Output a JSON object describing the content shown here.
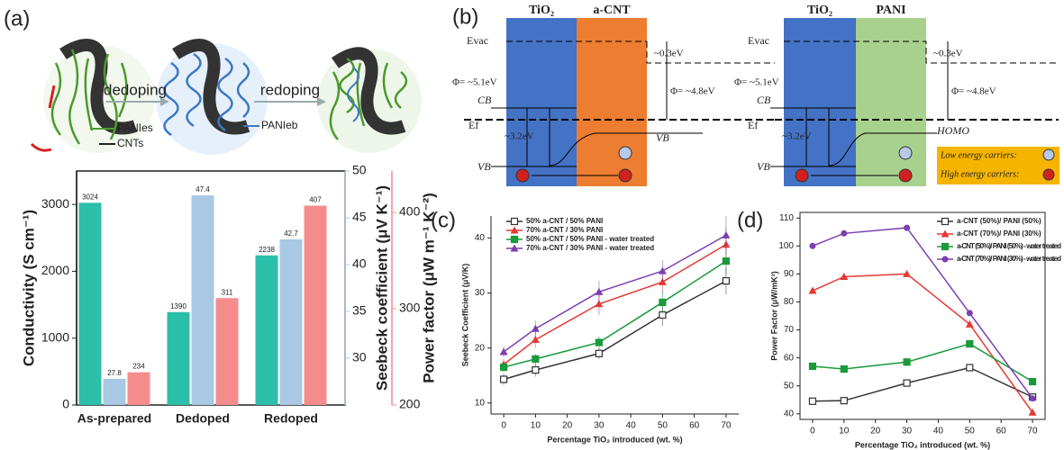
{
  "panel_labels": [
    "(a)",
    "(b)",
    "(c)",
    "(d)"
  ],
  "schematic": {
    "steps": [
      "dedoping",
      "redoping"
    ],
    "labels": [
      "PANIes",
      "CNTs",
      "PANIeb"
    ]
  },
  "band_diagrams": [
    {
      "materials": [
        "TiO₂",
        "a-CNT"
      ],
      "evac": "Evac",
      "offset": "~0.3eV",
      "phi_left": "Φ= ~5.1eV",
      "phi_right": "Φ= ~4.8eV",
      "cb": "CB",
      "ef": "Ef",
      "gap": "~3.2eV",
      "right_band": "VB",
      "vb": "VB"
    },
    {
      "materials": [
        "TiO₂",
        "PANI"
      ],
      "evac": "Evac",
      "offset": "~0.3eV",
      "phi_left": "Φ= ~5.1eV",
      "phi_right": "Φ= ~4.8eV",
      "cb": "CB",
      "ef": "Ef",
      "gap": "~3.2eV",
      "right_band": "HOMO",
      "vb": "VB"
    }
  ],
  "carriers": [
    "Low energy carriers:",
    "High energy carriers:"
  ],
  "chart_data": [
    {
      "type": "bar",
      "categories": [
        "As-prepared",
        "Dedoped",
        "Redoped"
      ],
      "ylabel": "Conductivity (S cm⁻¹)",
      "y2label": "Seebeck coefficient (μV K⁻¹)",
      "y3label": "Power factor (μW m⁻¹ K⁻²)",
      "ylim": [
        0,
        3500
      ],
      "yticks": [
        0,
        1000,
        2000,
        3000
      ],
      "y2lim": [
        25,
        50
      ],
      "y2ticks": [
        30,
        35,
        40,
        45,
        50
      ],
      "y3lim": [
        200,
        443
      ],
      "y3ticks": [
        200,
        300,
        400
      ],
      "series": [
        {
          "color": "#2bbfa9",
          "axis": "y",
          "values": [
            3024,
            1390,
            2238
          ]
        },
        {
          "color": "#a9c8e4",
          "axis": "y2",
          "values": [
            27.8,
            47.4,
            42.7
          ]
        },
        {
          "color": "#f58c8c",
          "axis": "y3",
          "values": [
            234,
            311,
            407
          ]
        }
      ]
    },
    {
      "type": "line",
      "x": [
        0,
        10,
        30,
        50,
        70
      ],
      "xlim": [
        -4,
        74
      ],
      "xticks": [
        0,
        10,
        20,
        30,
        40,
        50,
        60,
        70
      ],
      "ylim": [
        8,
        44
      ],
      "yticks": [
        10,
        20,
        30,
        40
      ],
      "xlabel": "Percentage TiO₂ introduced (wt. %)",
      "ylabel": "Seebeck Coefficient (μV/K)",
      "series": [
        {
          "name": "50% a-CNT / 50% PANI",
          "color": "#333333",
          "marker": "square-open",
          "values": [
            14.3,
            16,
            19,
            26,
            32.2
          ],
          "errors": [
            1,
            1.2,
            1,
            2,
            2.5
          ]
        },
        {
          "name": "70% a-CNT / 30% PANI",
          "color": "#e53935",
          "marker": "triangle",
          "values": [
            17,
            21.5,
            28,
            32,
            38.8
          ],
          "errors": [
            1,
            1.5,
            2,
            2,
            3
          ]
        },
        {
          "name": "50% a-CNT / 50% PANI - water treated",
          "color": "#1a9a3a",
          "marker": "square",
          "values": [
            16.5,
            18,
            21,
            28.3,
            35.8
          ],
          "errors": [
            1,
            1,
            1.2,
            2,
            2.5
          ]
        },
        {
          "name": "70% a-CNT / 30% PANI - water treated",
          "color": "#7b3fb0",
          "marker": "triangle",
          "values": [
            19.3,
            23.5,
            30.2,
            34,
            40.5
          ],
          "errors": [
            1,
            1.5,
            2,
            2,
            3.5
          ]
        }
      ]
    },
    {
      "type": "line",
      "x": [
        0,
        10,
        30,
        50,
        70
      ],
      "xlim": [
        -4,
        74
      ],
      "xticks": [
        0,
        10,
        20,
        30,
        40,
        50,
        60,
        70
      ],
      "ylim": [
        38,
        112
      ],
      "yticks": [
        40,
        50,
        60,
        70,
        80,
        90,
        100,
        110
      ],
      "xlabel": "Percentage TiO₂ introduced (wt. %)",
      "ylabel": "Power Factor (μW/mK²)",
      "series": [
        {
          "name": "a-CNT (50%)/ PANI (50%)",
          "color": "#333333",
          "marker": "square-open",
          "values": [
            44.5,
            44.7,
            51,
            56.5,
            46
          ]
        },
        {
          "name": "a-CNT (70%)/ PANI (30%)",
          "color": "#e53935",
          "marker": "triangle",
          "values": [
            84,
            89,
            90,
            72,
            40.5
          ]
        },
        {
          "name": "a-CNT (50%)/ PANI (50%) - water treated",
          "color": "#1a9a3a",
          "marker": "square",
          "values": [
            57,
            56,
            58.5,
            65,
            51.5
          ]
        },
        {
          "name": "a-CNT (70%)/ PANI (30%) - water treated",
          "color": "#7b3fb0",
          "marker": "circle",
          "values": [
            100,
            104.5,
            106.5,
            76,
            45.5
          ]
        }
      ]
    }
  ]
}
